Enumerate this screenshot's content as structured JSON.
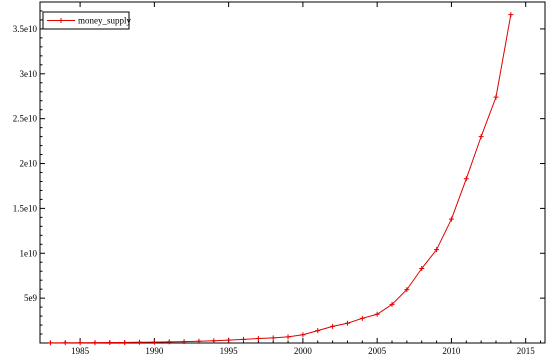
{
  "chart_data": {
    "type": "line",
    "title": "",
    "xlabel": "",
    "ylabel": "",
    "xlim": [
      1982.3,
      2016.3
    ],
    "ylim": [
      0,
      38000000000.0
    ],
    "grid": false,
    "legend_position": "top-left",
    "x_ticks": [
      {
        "value": 1985,
        "label": "1985"
      },
      {
        "value": 1990,
        "label": "1990"
      },
      {
        "value": 1995,
        "label": "1995"
      },
      {
        "value": 2000,
        "label": "2000"
      },
      {
        "value": 2005,
        "label": "2005"
      },
      {
        "value": 2010,
        "label": "2010"
      },
      {
        "value": 2015,
        "label": "2015"
      }
    ],
    "y_ticks": [
      {
        "value": 5000000000,
        "label": "5e9"
      },
      {
        "value": 10000000000,
        "label": "1e10"
      },
      {
        "value": 15000000000,
        "label": "1.5e10"
      },
      {
        "value": 20000000000,
        "label": "2e10"
      },
      {
        "value": 25000000000,
        "label": "2.5e10"
      },
      {
        "value": 30000000000,
        "label": "3e10"
      },
      {
        "value": 35000000000,
        "label": "3.5e10"
      }
    ],
    "series": [
      {
        "name": "money_supply",
        "color": "#e00000",
        "x": [
          1983,
          1984,
          1985,
          1986,
          1987,
          1988,
          1989,
          1990,
          1991,
          1992,
          1993,
          1994,
          1995,
          1996,
          1997,
          1998,
          1999,
          2000,
          2001,
          2002,
          2003,
          2004,
          2005,
          2006,
          2007,
          2008,
          2009,
          2010,
          2011,
          2012,
          2013,
          2014
        ],
        "y": [
          20000000,
          25000000,
          30000000,
          40000000,
          50000000,
          60000000,
          80000000,
          100000000,
          120000000,
          150000000,
          190000000,
          250000000,
          320000000,
          400000000,
          500000000,
          570000000,
          680000000,
          920000000,
          1380000000,
          1850000000,
          2200000000,
          2750000000,
          3200000000,
          4300000000,
          5950000000,
          8300000000,
          10400000000,
          13800000000,
          18300000000,
          23000000000,
          27400000000,
          36600000000
        ]
      }
    ]
  }
}
